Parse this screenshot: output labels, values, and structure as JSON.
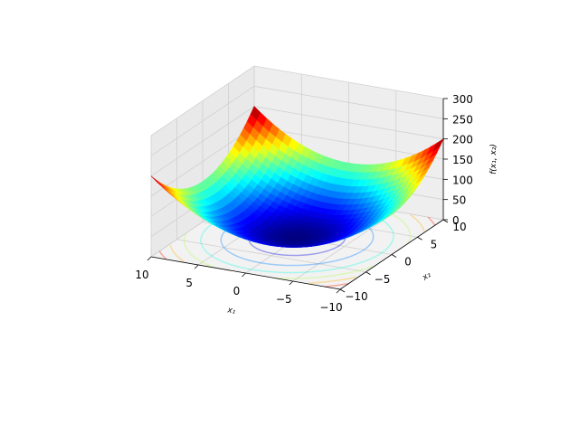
{
  "chart_data": {
    "type": "surface3d",
    "function": "x1^2 + x2^2 (paraboloid)",
    "x": {
      "label": "x₁",
      "range": [
        -10,
        10
      ],
      "ticks": [
        -10,
        -5,
        0,
        5,
        10
      ],
      "tick_labels": [
        "−10",
        "−5",
        "0",
        "5",
        "10"
      ]
    },
    "y": {
      "label": "x₂",
      "range": [
        -10,
        10
      ],
      "ticks": [
        -10,
        -5,
        0,
        5,
        10
      ],
      "tick_labels": [
        "−10",
        "−5",
        "0",
        "5",
        "10"
      ]
    },
    "z": {
      "label": "f(x₁, x₂)",
      "range": [
        0,
        300
      ],
      "ticks": [
        0,
        50,
        100,
        150,
        200,
        250,
        300
      ],
      "tick_labels": [
        "0",
        "50",
        "100",
        "150",
        "200",
        "250",
        "300"
      ]
    },
    "colormap": "jet",
    "contour_levels": [
      20,
      50,
      80,
      110,
      140,
      170
    ],
    "grid": true,
    "background_panes": "#f2f2f2"
  }
}
